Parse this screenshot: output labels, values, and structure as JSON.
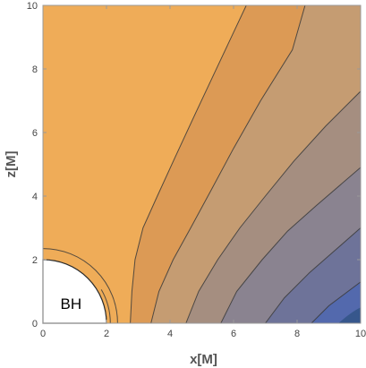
{
  "chart_data": {
    "type": "contour",
    "xlabel": "x[M]",
    "ylabel": "z[M]",
    "xlim": [
      0,
      10
    ],
    "ylim": [
      0,
      10
    ],
    "xticks": [
      0,
      2,
      4,
      6,
      8,
      10
    ],
    "yticks": [
      0,
      2,
      4,
      6,
      8,
      10
    ],
    "xtick_labels": [
      "0",
      "2",
      "4",
      "6",
      "8",
      "10"
    ],
    "ytick_labels": [
      "0",
      "2",
      "4",
      "6",
      "8",
      "10"
    ],
    "horizon_radius": 2,
    "horizon_label": "BH",
    "contours": [
      {
        "level": 1,
        "points": [
          [
            2.75,
            0.0
          ],
          [
            2.8,
            1.0
          ],
          [
            2.9,
            2.0
          ],
          [
            3.15,
            3.0
          ],
          [
            3.6,
            4.0
          ],
          [
            4.15,
            5.2
          ],
          [
            4.8,
            6.6
          ],
          [
            5.6,
            8.3
          ],
          [
            6.4,
            10.0
          ]
        ]
      },
      {
        "level": 2,
        "points": [
          [
            3.4,
            0.0
          ],
          [
            3.65,
            1.0
          ],
          [
            4.1,
            2.0
          ],
          [
            4.65,
            3.0
          ],
          [
            5.3,
            4.2
          ],
          [
            6.0,
            5.5
          ],
          [
            6.85,
            7.0
          ],
          [
            7.85,
            8.6
          ],
          [
            8.25,
            10.0
          ]
        ]
      },
      {
        "level": 3,
        "points": [
          [
            4.5,
            0.0
          ],
          [
            4.9,
            1.0
          ],
          [
            5.5,
            2.0
          ],
          [
            6.2,
            3.0
          ],
          [
            7.0,
            4.0
          ],
          [
            7.9,
            5.1
          ],
          [
            8.9,
            6.2
          ],
          [
            10.0,
            7.3
          ]
        ]
      },
      {
        "level": 4,
        "points": [
          [
            5.6,
            0.0
          ],
          [
            6.1,
            1.0
          ],
          [
            6.9,
            2.0
          ],
          [
            7.7,
            2.9
          ],
          [
            8.6,
            3.7
          ],
          [
            10.0,
            4.9
          ]
        ]
      },
      {
        "level": 5,
        "points": [
          [
            7.0,
            0.0
          ],
          [
            7.6,
            0.8
          ],
          [
            8.4,
            1.6
          ],
          [
            9.2,
            2.3
          ],
          [
            10.0,
            3.0
          ]
        ]
      },
      {
        "level": 6,
        "points": [
          [
            8.45,
            0.0
          ],
          [
            9.0,
            0.55
          ],
          [
            9.6,
            1.0
          ],
          [
            10.0,
            1.3
          ]
        ]
      }
    ],
    "inner_contours": [
      {
        "radius": 2.35,
        "range_deg": [
          0,
          90
        ]
      },
      {
        "radius": 2.12,
        "range_deg": [
          0,
          30
        ]
      }
    ],
    "colors": [
      "#EFAC58",
      "#DC9A55",
      "#C59C72",
      "#A58E80",
      "#8A8390",
      "#6E7399",
      "#5369AD",
      "#37578C"
    ]
  }
}
